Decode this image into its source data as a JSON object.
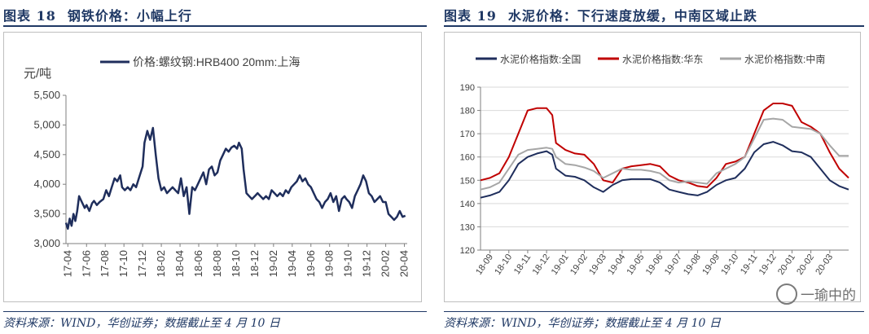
{
  "figures": [
    {
      "number": "图表 18",
      "caption": "钢铁价格：小幅上行",
      "source": "资料来源：WIND，华创证券；数据截止至 4 月 10 日"
    },
    {
      "number": "图表 19",
      "caption": "水泥价格：下行速度放缓，中南区域止跌",
      "source": "资料来源：WIND，华创证券；数据截止至 4 月 10 日"
    }
  ],
  "watermark": "一瑜中的",
  "chart_data": [
    {
      "type": "line",
      "ylabel": "元/吨",
      "ylim": [
        3000,
        5500
      ],
      "yticks": [
        3000,
        3500,
        4000,
        4500,
        5000,
        5500
      ],
      "ytick_labels": [
        "3,000",
        "3,500",
        "4,000",
        "4,500",
        "5,000",
        "5,500"
      ],
      "xlim": [
        0,
        36.5
      ],
      "x_tick_labels": [
        "17-04",
        "17-06",
        "17-08",
        "17-10",
        "17-12",
        "18-02",
        "18-04",
        "18-06",
        "18-08",
        "18-10",
        "18-12",
        "19-02",
        "19-04",
        "19-06",
        "19-08",
        "19-10",
        "19-12",
        "20-02",
        "20-04"
      ],
      "legend_position": "top-center",
      "series": [
        {
          "name": "价格:螺纹钢:HRB400 20mm:上海",
          "color": "#1f2e5c",
          "x": [
            0,
            0.2,
            0.4,
            0.6,
            0.8,
            1.0,
            1.2,
            1.4,
            1.7,
            2.0,
            2.2,
            2.5,
            2.8,
            3.0,
            3.3,
            3.6,
            4.0,
            4.3,
            4.6,
            4.9,
            5.2,
            5.5,
            5.8,
            6.0,
            6.3,
            6.6,
            6.9,
            7.2,
            7.5,
            7.8,
            8.0,
            8.2,
            8.4,
            8.7,
            9.0,
            9.3,
            9.6,
            9.9,
            10.2,
            10.5,
            10.8,
            11.1,
            11.4,
            11.7,
            12.0,
            12.3,
            12.6,
            12.9,
            13.2,
            13.5,
            13.8,
            14.1,
            14.4,
            14.7,
            15.0,
            15.3,
            15.6,
            15.9,
            16.2,
            16.5,
            16.8,
            17.1,
            17.4,
            17.7,
            18.0,
            18.3,
            18.5,
            18.8,
            19.0,
            19.3,
            19.6,
            19.9,
            20.2,
            20.5,
            20.8,
            21.1,
            21.4,
            21.7,
            22.0,
            22.3,
            22.6,
            22.9,
            23.2,
            23.5,
            23.8,
            24.1,
            24.4,
            24.7,
            25.0,
            25.3,
            25.6,
            25.9,
            26.2,
            26.5,
            26.8,
            27.1,
            27.4,
            27.7,
            28.0,
            28.3,
            28.6,
            28.9,
            29.2,
            29.5,
            29.8,
            30.0,
            30.3,
            30.6,
            30.9,
            31.2,
            31.5,
            31.8,
            32.1,
            32.4,
            32.7,
            33.0,
            33.3,
            33.6,
            33.9,
            34.2,
            34.5,
            34.8,
            35.1,
            35.4,
            35.7,
            36.0,
            36.3
          ],
          "values": [
            3350,
            3250,
            3420,
            3300,
            3500,
            3380,
            3550,
            3800,
            3700,
            3600,
            3650,
            3550,
            3680,
            3720,
            3650,
            3700,
            3750,
            3900,
            3800,
            3950,
            4100,
            4050,
            4150,
            3950,
            3900,
            3950,
            3900,
            4000,
            3950,
            4100,
            4200,
            4300,
            4700,
            4900,
            4750,
            4950,
            4500,
            4100,
            3900,
            3950,
            3850,
            3900,
            3950,
            3900,
            3850,
            4100,
            3800,
            3950,
            3500,
            3950,
            3900,
            4000,
            4100,
            4200,
            4000,
            4250,
            4300,
            4150,
            4200,
            4400,
            4500,
            4600,
            4550,
            4620,
            4650,
            4600,
            4700,
            4600,
            4250,
            3850,
            3800,
            3750,
            3800,
            3850,
            3800,
            3750,
            3800,
            3750,
            3900,
            3850,
            3800,
            3850,
            3800,
            3900,
            3850,
            3950,
            4000,
            4050,
            4150,
            4050,
            4100,
            4000,
            3950,
            3850,
            3750,
            3700,
            3600,
            3700,
            3750,
            3850,
            3700,
            3800,
            3550,
            3750,
            3800,
            3750,
            3700,
            3600,
            3800,
            3900,
            4000,
            4150,
            4050,
            3850,
            3800,
            3700,
            3750,
            3800,
            3700,
            3700,
            3500,
            3450,
            3400,
            3450,
            3550,
            3450,
            3470
          ]
        }
      ]
    },
    {
      "type": "line",
      "ylim": [
        120,
        190
      ],
      "yticks": [
        120,
        130,
        140,
        150,
        160,
        170,
        180,
        190
      ],
      "ytick_labels": [
        "120",
        "130",
        "140",
        "150",
        "160",
        "170",
        "180",
        "190"
      ],
      "xlim": [
        0,
        19.5
      ],
      "x_tick_labels": [
        "18-09",
        "18-10",
        "18-11",
        "18-12",
        "19-01",
        "19-02",
        "19-03",
        "19-04",
        "19-05",
        "19-06",
        "19-07",
        "19-08",
        "19-09",
        "19-10",
        "19-11",
        "19-12",
        "20-01",
        "20-02",
        "20-03"
      ],
      "legend_position": "top",
      "series": [
        {
          "name": "水泥价格指数:全国",
          "color": "#1f2e5c",
          "x": [
            0,
            0.5,
            1,
            1.5,
            2,
            2.5,
            3,
            3.5,
            3.8,
            4,
            4.5,
            5,
            5.5,
            6,
            6.5,
            7,
            7.5,
            8,
            8.5,
            9,
            9.5,
            10,
            10.5,
            11,
            11.5,
            12,
            12.5,
            13,
            13.5,
            14,
            14.5,
            15,
            15.5,
            16,
            16.5,
            17,
            17.5,
            18,
            18.5,
            19,
            19.5
          ],
          "values": [
            142.5,
            143.5,
            145,
            150,
            157,
            160,
            161.5,
            162.5,
            161,
            155,
            152,
            151.5,
            150,
            147,
            145,
            148,
            150,
            150.5,
            150.5,
            150.5,
            149,
            146,
            145,
            144,
            143.5,
            145,
            148,
            150,
            151,
            155,
            162,
            165.5,
            166.5,
            165,
            162.5,
            162,
            160,
            155,
            150,
            147.5,
            146
          ]
        },
        {
          "name": "水泥价格指数:华东",
          "color": "#c00000",
          "x": [
            0,
            0.5,
            1,
            1.5,
            2,
            2.5,
            3,
            3.5,
            3.8,
            4,
            4.5,
            5,
            5.5,
            6,
            6.5,
            7,
            7.5,
            8,
            8.5,
            9,
            9.5,
            10,
            10.5,
            11,
            11.5,
            12,
            12.5,
            13,
            13.5,
            14,
            14.5,
            15,
            15.5,
            16,
            16.5,
            17,
            17.5,
            18,
            18.5,
            19,
            19.5
          ],
          "values": [
            150,
            151,
            153,
            160,
            170,
            180,
            181,
            181,
            178,
            166,
            163,
            161.5,
            161,
            157,
            150,
            149,
            155,
            156,
            156.5,
            157,
            156,
            152,
            150,
            149,
            147.5,
            147,
            151,
            157,
            158,
            160,
            170,
            180,
            183,
            183,
            182,
            175,
            173,
            170,
            162,
            155,
            151
          ]
        },
        {
          "name": "水泥价格指数:中南",
          "color": "#a6a6a6",
          "x": [
            0,
            0.5,
            1,
            1.5,
            2,
            2.5,
            3,
            3.5,
            3.8,
            4,
            4.5,
            5,
            5.5,
            6,
            6.5,
            7,
            7.5,
            8,
            8.5,
            9,
            9.5,
            10,
            10.5,
            11,
            11.5,
            12,
            12.5,
            13,
            13.5,
            14,
            14.5,
            15,
            15.5,
            16,
            16.5,
            17,
            17.5,
            18,
            18.5,
            19,
            19.5
          ],
          "values": [
            146,
            147,
            149,
            155,
            161,
            163,
            163.5,
            164,
            163.5,
            160,
            157,
            156.5,
            155.5,
            154,
            151,
            153,
            155,
            154.5,
            154.5,
            154,
            153,
            150,
            149,
            149.5,
            149,
            148.5,
            153,
            155,
            157,
            160,
            168,
            176,
            176.5,
            176,
            173,
            172.5,
            172,
            170,
            165,
            160.5,
            160.5
          ]
        }
      ]
    }
  ]
}
